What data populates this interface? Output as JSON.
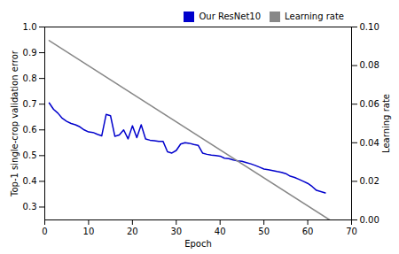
{
  "chart_data": {
    "type": "line",
    "xlabel": "Epoch",
    "ylabel": "Top-1 single-crop validation error",
    "y2label": "Learning rate",
    "xlim": [
      0,
      70
    ],
    "xticks": [
      0,
      10,
      20,
      30,
      40,
      50,
      60,
      70
    ],
    "ylim": [
      0.25,
      1.0
    ],
    "yticks": [
      0.3,
      0.4,
      0.5,
      0.6,
      0.7,
      0.8,
      0.9,
      {
        "value": 1.0,
        "label": "1.0"
      }
    ],
    "y2lim": [
      0.0,
      0.1
    ],
    "y2ticks": [
      {
        "value": 0.0,
        "label": "0.00"
      },
      {
        "value": 0.02,
        "label": "0.02"
      },
      {
        "value": 0.04,
        "label": "0.04"
      },
      {
        "value": 0.06,
        "label": "0.06"
      },
      {
        "value": 0.08,
        "label": "0.08"
      },
      {
        "value": 0.1,
        "label": "0.10"
      }
    ],
    "grid": false,
    "legend": "upper right",
    "series": [
      {
        "name": "Our ResNet10",
        "color": "#0000cc",
        "x": [
          1,
          2,
          3,
          4,
          5,
          6,
          7,
          8,
          9,
          10,
          11,
          12,
          13,
          14,
          15,
          16,
          17,
          18,
          19,
          20,
          21,
          22,
          23,
          24,
          25,
          26,
          27,
          28,
          29,
          30,
          31,
          32,
          33,
          34,
          35,
          36,
          37,
          38,
          39,
          40,
          41,
          42,
          43,
          44,
          45,
          46,
          47,
          48,
          49,
          50,
          51,
          52,
          53,
          54,
          55,
          56,
          57,
          58,
          59,
          60,
          61,
          62,
          63,
          64
        ],
        "values": [
          0.705,
          0.68,
          0.665,
          0.645,
          0.633,
          0.625,
          0.62,
          0.612,
          0.6,
          0.592,
          0.59,
          0.583,
          0.577,
          0.66,
          0.655,
          0.575,
          0.58,
          0.6,
          0.565,
          0.616,
          0.57,
          0.62,
          0.565,
          0.56,
          0.558,
          0.555,
          0.555,
          0.515,
          0.51,
          0.52,
          0.545,
          0.55,
          0.548,
          0.543,
          0.54,
          0.51,
          0.505,
          0.502,
          0.5,
          0.498,
          0.49,
          0.488,
          0.483,
          0.48,
          0.478,
          0.473,
          0.468,
          0.462,
          0.455,
          0.448,
          0.445,
          0.442,
          0.438,
          0.435,
          0.43,
          0.42,
          0.415,
          0.408,
          0.4,
          0.392,
          0.38,
          0.365,
          0.36,
          0.355
        ]
      },
      {
        "name": "Learning rate",
        "color": "#888888",
        "axis": "y2",
        "x": [
          1,
          65
        ],
        "values": [
          0.093,
          0.0
        ]
      }
    ]
  }
}
